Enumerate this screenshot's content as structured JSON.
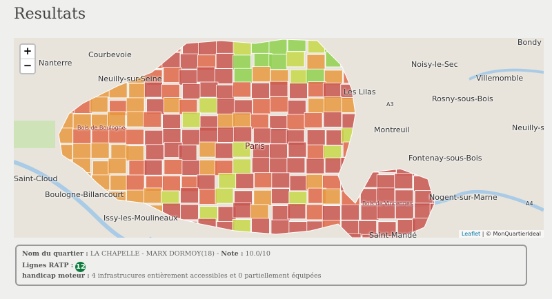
{
  "title": "Resultats",
  "map": {
    "zoom_in": "+",
    "zoom_out": "−",
    "places": [
      "Courbevoie",
      "Nanterre",
      "Neuilly-sur-Seine",
      "Bois de Boulogne",
      "Saint-Cloud",
      "Boulogne-Billancourt",
      "Issy-les-Moulineaux",
      "Paris",
      "Noisy-le-Sec",
      "Villemomble",
      "Les Lilas",
      "Rosny-sous-Bois",
      "Montreuil",
      "Neuilly-sur-Marne",
      "Fontenay-sous-Bois",
      "Nogent-sur-Marne",
      "Bois de Vincennes",
      "Saint-Mandé",
      "Bondy",
      "A4",
      "A3"
    ],
    "attribution_link": "Leaflet",
    "attribution_text": "| © MonQuartierIdeal",
    "colors": {
      "best": "#8fd14f",
      "good": "#c8d84a",
      "mid": "#e89a3f",
      "low": "#e06a4a",
      "worst": "#c85650"
    }
  },
  "info": {
    "name_label": "Nom du quartier :",
    "name_value": "LA CHAPELLE - MARX DORMOY(18)",
    "sep": " - ",
    "note_label": "Note :",
    "note_value": "10.0/10",
    "lines_label": "Lignes RATP :",
    "lines": [
      "12"
    ],
    "line_color": "#0b7a3d",
    "handicap_label": "handicap moteur :",
    "handicap_value": "4 infrastrucures entièrement accessibles et 0 partiellement équipées"
  }
}
